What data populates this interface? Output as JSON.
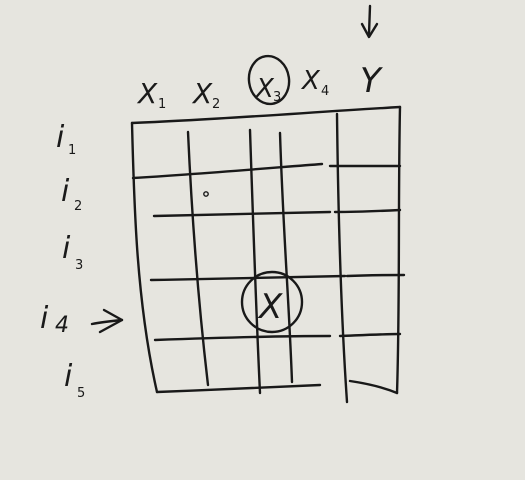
{
  "diagram": {
    "columns": [
      {
        "name": "X",
        "sub": "1"
      },
      {
        "name": "X",
        "sub": "2"
      },
      {
        "name": "X",
        "sub": "3"
      },
      {
        "name": "X",
        "sub": "4"
      },
      {
        "name": "Y",
        "sub": ""
      }
    ],
    "rows": [
      {
        "name": "i",
        "sub": "1"
      },
      {
        "name": "i",
        "sub": "2"
      },
      {
        "name": "i",
        "sub": "3"
      },
      {
        "name": "i",
        "sub": "4"
      },
      {
        "name": "i",
        "sub": "5"
      }
    ],
    "highlighted_column": "X3",
    "highlighted_row": "i4",
    "missing_cell_mark": "X",
    "colors": {
      "background": "#e6e5df",
      "ink": "#191919"
    }
  }
}
